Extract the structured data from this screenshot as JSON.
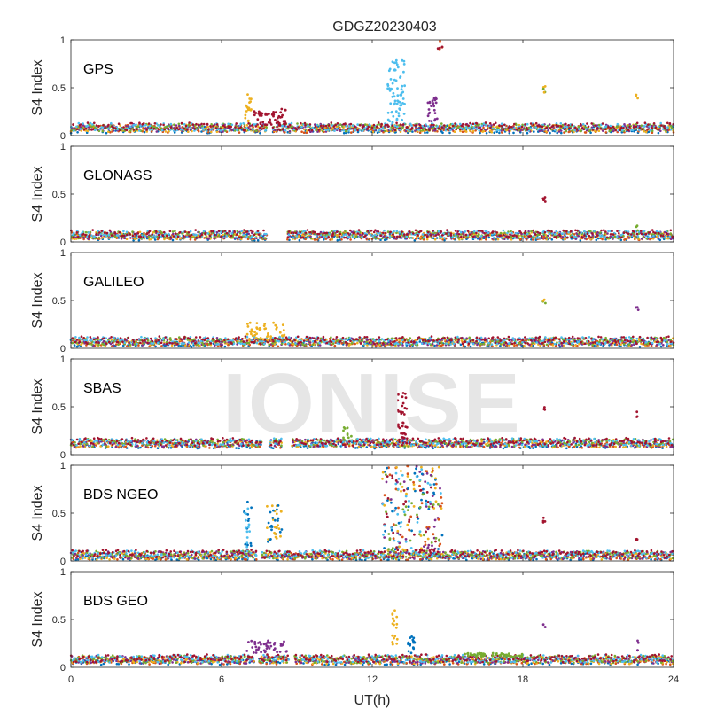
{
  "chart_data": {
    "type": "scatter",
    "title": "GDGZ20230403",
    "xlabel": "UT(h)",
    "ylabel": "S4 Index",
    "xlim": [
      0,
      24
    ],
    "ylim": [
      0,
      1
    ],
    "x_ticks": [
      "0",
      "6",
      "12",
      "18",
      "24"
    ],
    "y_ticks": [
      "0",
      "0.5",
      "1"
    ],
    "watermark": "IONISE",
    "grid": false,
    "colors": [
      "#0072BD",
      "#D95319",
      "#EDB120",
      "#7E2F8E",
      "#77AC30",
      "#4DBEEE",
      "#A2142F"
    ],
    "panels": [
      {
        "label": "GPS",
        "baseline": 0.08,
        "gaps": [
          [
            7.8,
            8.0
          ]
        ],
        "events": [
          {
            "x": [
              6.9,
              7.2
            ],
            "y": [
              0.15,
              0.46
            ],
            "n": 18,
            "colors": [
              2
            ]
          },
          {
            "x": [
              7.3,
              8.6
            ],
            "y": [
              0.1,
              0.28
            ],
            "n": 50,
            "colors": [
              6
            ]
          },
          {
            "x": [
              12.6,
              13.3
            ],
            "y": [
              0.12,
              0.8
            ],
            "n": 70,
            "colors": [
              5
            ]
          },
          {
            "x": [
              14.2,
              14.6
            ],
            "y": [
              0.15,
              0.4
            ],
            "n": 25,
            "colors": [
              3
            ]
          },
          {
            "x": [
              14.6,
              14.8
            ],
            "y": [
              0.88,
              1.0
            ],
            "n": 6,
            "colors": [
              1,
              6
            ]
          },
          {
            "x": [
              18.8,
              18.9
            ],
            "y": [
              0.45,
              0.52
            ],
            "n": 5,
            "colors": [
              2,
              4
            ]
          },
          {
            "x": [
              22.5,
              22.6
            ],
            "y": [
              0.38,
              0.43
            ],
            "n": 3,
            "colors": [
              2
            ]
          }
        ]
      },
      {
        "label": "GLONASS",
        "baseline": 0.07,
        "gaps": [
          [
            7.8,
            8.6
          ]
        ],
        "events": [
          {
            "x": [
              18.8,
              18.9
            ],
            "y": [
              0.42,
              0.47
            ],
            "n": 5,
            "colors": [
              6
            ]
          },
          {
            "x": [
              22.5,
              22.6
            ],
            "y": [
              0.12,
              0.18
            ],
            "n": 3,
            "colors": [
              4
            ]
          }
        ]
      },
      {
        "label": "GALILEO",
        "baseline": 0.07,
        "gaps": [],
        "events": [
          {
            "x": [
              7.0,
              8.5
            ],
            "y": [
              0.08,
              0.27
            ],
            "n": 45,
            "colors": [
              2
            ]
          },
          {
            "x": [
              18.8,
              18.9
            ],
            "y": [
              0.46,
              0.52
            ],
            "n": 4,
            "colors": [
              4,
              2
            ]
          },
          {
            "x": [
              22.5,
              22.6
            ],
            "y": [
              0.35,
              0.43
            ],
            "n": 4,
            "colors": [
              3
            ]
          }
        ]
      },
      {
        "label": "SBAS",
        "baseline": 0.12,
        "gaps": [
          [
            7.6,
            7.9
          ],
          [
            8.4,
            8.8
          ]
        ],
        "events": [
          {
            "x": [
              13.0,
              13.4
            ],
            "y": [
              0.15,
              0.65
            ],
            "n": 35,
            "colors": [
              6
            ]
          },
          {
            "x": [
              10.8,
              11.2
            ],
            "y": [
              0.15,
              0.3
            ],
            "n": 10,
            "colors": [
              4
            ]
          },
          {
            "x": [
              18.8,
              18.9
            ],
            "y": [
              0.45,
              0.52
            ],
            "n": 4,
            "colors": [
              6
            ]
          },
          {
            "x": [
              22.5,
              22.6
            ],
            "y": [
              0.38,
              0.45
            ],
            "n": 3,
            "colors": [
              6
            ]
          }
        ]
      },
      {
        "label": "BDS NGEO",
        "baseline": 0.06,
        "gaps": [
          [
            7.4,
            7.6
          ]
        ],
        "events": [
          {
            "x": [
              6.9,
              7.2
            ],
            "y": [
              0.1,
              0.62
            ],
            "n": 25,
            "colors": [
              5,
              0
            ]
          },
          {
            "x": [
              7.8,
              8.4
            ],
            "y": [
              0.18,
              0.58
            ],
            "n": 40,
            "colors": [
              2,
              0
            ]
          },
          {
            "x": [
              12.4,
              14.8
            ],
            "y": [
              0.08,
              1.0
            ],
            "n": 230,
            "colors": [
              1,
              2,
              4,
              0,
              6,
              3,
              5
            ]
          },
          {
            "x": [
              18.8,
              18.9
            ],
            "y": [
              0.4,
              0.46
            ],
            "n": 4,
            "colors": [
              6
            ]
          },
          {
            "x": [
              22.5,
              22.6
            ],
            "y": [
              0.2,
              0.28
            ],
            "n": 3,
            "colors": [
              6
            ]
          }
        ]
      },
      {
        "label": "BDS GEO",
        "baseline": 0.08,
        "gaps": [
          [
            7.3,
            7.5
          ],
          [
            8.7,
            8.9
          ]
        ],
        "events": [
          {
            "x": [
              7.0,
              8.6
            ],
            "y": [
              0.15,
              0.28
            ],
            "n": 45,
            "colors": [
              3
            ]
          },
          {
            "x": [
              12.8,
              13.0
            ],
            "y": [
              0.2,
              0.62
            ],
            "n": 20,
            "colors": [
              2
            ]
          },
          {
            "x": [
              13.4,
              13.7
            ],
            "y": [
              0.15,
              0.35
            ],
            "n": 18,
            "colors": [
              0
            ]
          },
          {
            "x": [
              15.6,
              18.1
            ],
            "y": [
              0.11,
              0.15
            ],
            "n": 50,
            "colors": [
              4
            ]
          },
          {
            "x": [
              18.8,
              18.9
            ],
            "y": [
              0.42,
              0.47
            ],
            "n": 3,
            "colors": [
              3
            ]
          },
          {
            "x": [
              22.5,
              22.6
            ],
            "y": [
              0.15,
              0.28
            ],
            "n": 4,
            "colors": [
              3
            ]
          }
        ]
      }
    ]
  }
}
